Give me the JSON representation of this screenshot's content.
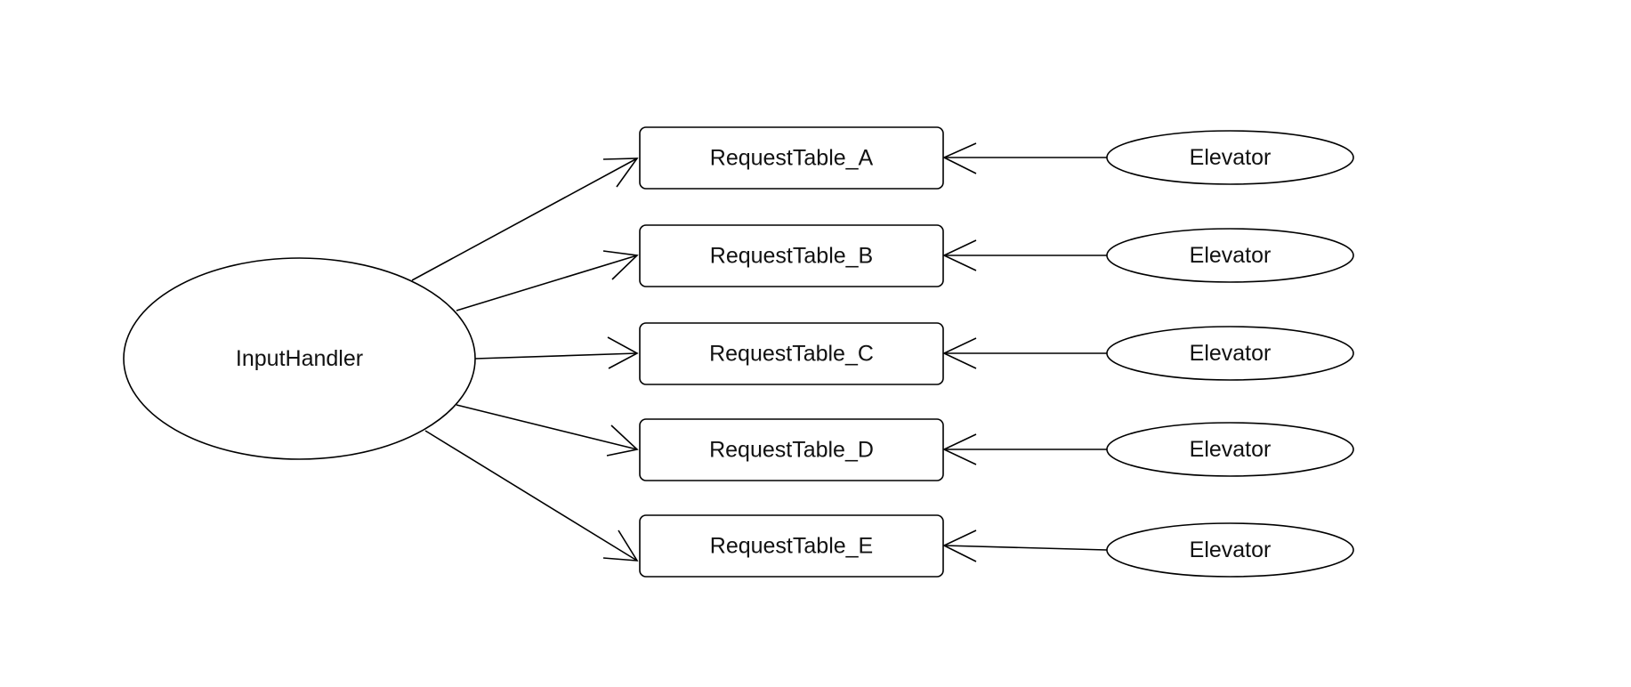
{
  "nodes": {
    "input_handler": {
      "label": "InputHandler"
    },
    "tables": [
      {
        "id": "table_a",
        "label": "RequestTable_A"
      },
      {
        "id": "table_b",
        "label": "RequestTable_B"
      },
      {
        "id": "table_c",
        "label": "RequestTable_C"
      },
      {
        "id": "table_d",
        "label": "RequestTable_D"
      },
      {
        "id": "table_e",
        "label": "RequestTable_E"
      }
    ],
    "elevators": [
      {
        "id": "elevator_a",
        "label": "Elevator"
      },
      {
        "id": "elevator_b",
        "label": "Elevator"
      },
      {
        "id": "elevator_c",
        "label": "Elevator"
      },
      {
        "id": "elevator_d",
        "label": "Elevator"
      },
      {
        "id": "elevator_e",
        "label": "Elevator"
      }
    ]
  },
  "edges": [
    {
      "from": "input_handler",
      "to": "table_a"
    },
    {
      "from": "input_handler",
      "to": "table_b"
    },
    {
      "from": "input_handler",
      "to": "table_c"
    },
    {
      "from": "input_handler",
      "to": "table_d"
    },
    {
      "from": "input_handler",
      "to": "table_e"
    },
    {
      "from": "elevator_a",
      "to": "table_a"
    },
    {
      "from": "elevator_b",
      "to": "table_b"
    },
    {
      "from": "elevator_c",
      "to": "table_c"
    },
    {
      "from": "elevator_d",
      "to": "table_d"
    },
    {
      "from": "elevator_e",
      "to": "table_e"
    }
  ],
  "colors": {
    "stroke": "#000000",
    "fill": "#ffffff",
    "text": "#111111"
  }
}
